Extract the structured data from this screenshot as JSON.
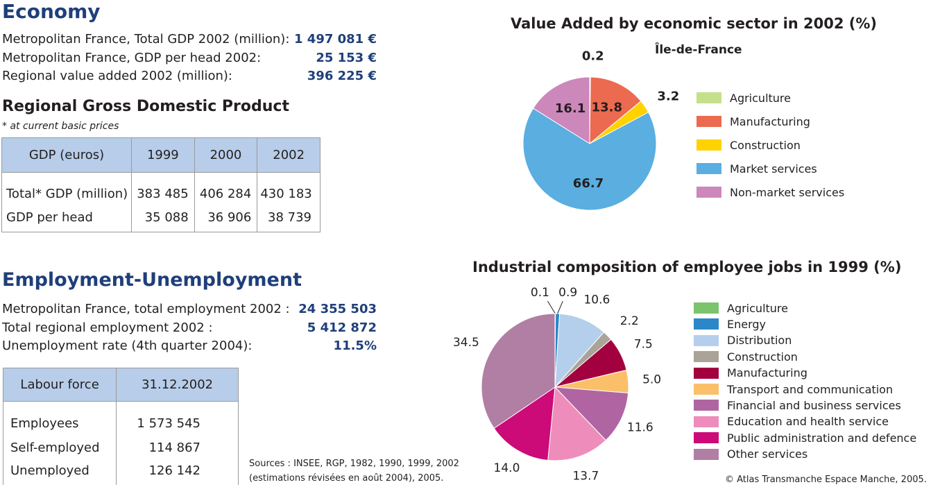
{
  "economy": {
    "heading": "Economy",
    "rows": [
      {
        "label": "Metropolitan France, Total GDP 2002 (million):",
        "value": "1 497 081 €"
      },
      {
        "label": "Metropolitan France, GDP per head 2002:",
        "value": "25 153 €"
      },
      {
        "label": "Regional value added 2002 (million):",
        "value": "396 225 €"
      }
    ]
  },
  "gdp": {
    "heading": "Regional Gross Domestic Product",
    "note": "* at current basic prices",
    "headers": [
      "GDP (euros)",
      "1999",
      "2000",
      "2002"
    ],
    "rows": [
      [
        "Total* GDP (million)",
        "383 485",
        "406 284",
        "430 183"
      ],
      [
        "GDP per head",
        "35 088",
        "36 906",
        "38 739"
      ]
    ]
  },
  "employment": {
    "heading": "Employment-Unemployment",
    "rows": [
      {
        "label": "Metropolitan France, total employment 2002 :",
        "value": "24 355 503"
      },
      {
        "label": "Total regional employment 2002 :",
        "value": "5 412 872"
      },
      {
        "label": "Unemployment rate (4th quarter 2004):",
        "value": "11.5%"
      }
    ]
  },
  "labour": {
    "headers": [
      "Labour force",
      "31.12.2002"
    ],
    "rows": [
      [
        "Employees",
        "1 573 545"
      ],
      [
        "Self-employed",
        "114 867"
      ],
      [
        "Unemployed",
        "126 142"
      ]
    ]
  },
  "sources": {
    "line1": "Sources : INSEE, RGP, 1982, 1990, 1999, 2002",
    "line2": "(estimations révisées en août 2004), 2005."
  },
  "copyright": "© Atlas Transmanche Espace Manche, 2005.",
  "chart_data": [
    {
      "type": "pie",
      "title": "Value Added by economic sector in 2002 (%)",
      "subtitle": "Île-de-France",
      "legend_position": "right",
      "slices": [
        {
          "name": "Agriculture",
          "value": 0.2,
          "label": "0.2",
          "color": "#c5e08b"
        },
        {
          "name": "Manufacturing",
          "value": 13.8,
          "label": "13.8",
          "color": "#ec6a4f"
        },
        {
          "name": "Construction",
          "value": 3.2,
          "label": "3.2",
          "color": "#ffd200"
        },
        {
          "name": "Market services",
          "value": 66.7,
          "label": "66.7",
          "color": "#5aaee0"
        },
        {
          "name": "Non-market services",
          "value": 16.1,
          "label": "16.1",
          "color": "#cc87bb"
        }
      ]
    },
    {
      "type": "pie",
      "title": "Industrial composition of employee jobs in 1999 (%)",
      "legend_position": "right",
      "slices": [
        {
          "name": "Agriculture",
          "value": 0.1,
          "label": "0.1",
          "color": "#7cc36d"
        },
        {
          "name": "Energy",
          "value": 0.9,
          "label": "0.9",
          "color": "#2b87c8"
        },
        {
          "name": "Distribution",
          "value": 10.6,
          "label": "10.6",
          "color": "#b4cfec"
        },
        {
          "name": "Construction",
          "value": 2.2,
          "label": "2.2",
          "color": "#aaa398"
        },
        {
          "name": "Manufacturing",
          "value": 7.5,
          "label": "7.5",
          "color": "#a3003f"
        },
        {
          "name": "Transport and communication",
          "value": 5.0,
          "label": "5.0",
          "color": "#fbbf6a"
        },
        {
          "name": "Financial and business services",
          "value": 11.6,
          "label": "11.6",
          "color": "#b065a2"
        },
        {
          "name": "Education and health service",
          "value": 13.7,
          "label": "13.7",
          "color": "#ee8dbb"
        },
        {
          "name": "Public administration and defence",
          "value": 14.0,
          "label": "14.0",
          "color": "#cc0a78"
        },
        {
          "name": "Other services",
          "value": 34.5,
          "label": "34.5",
          "color": "#b07fa3"
        }
      ]
    }
  ]
}
